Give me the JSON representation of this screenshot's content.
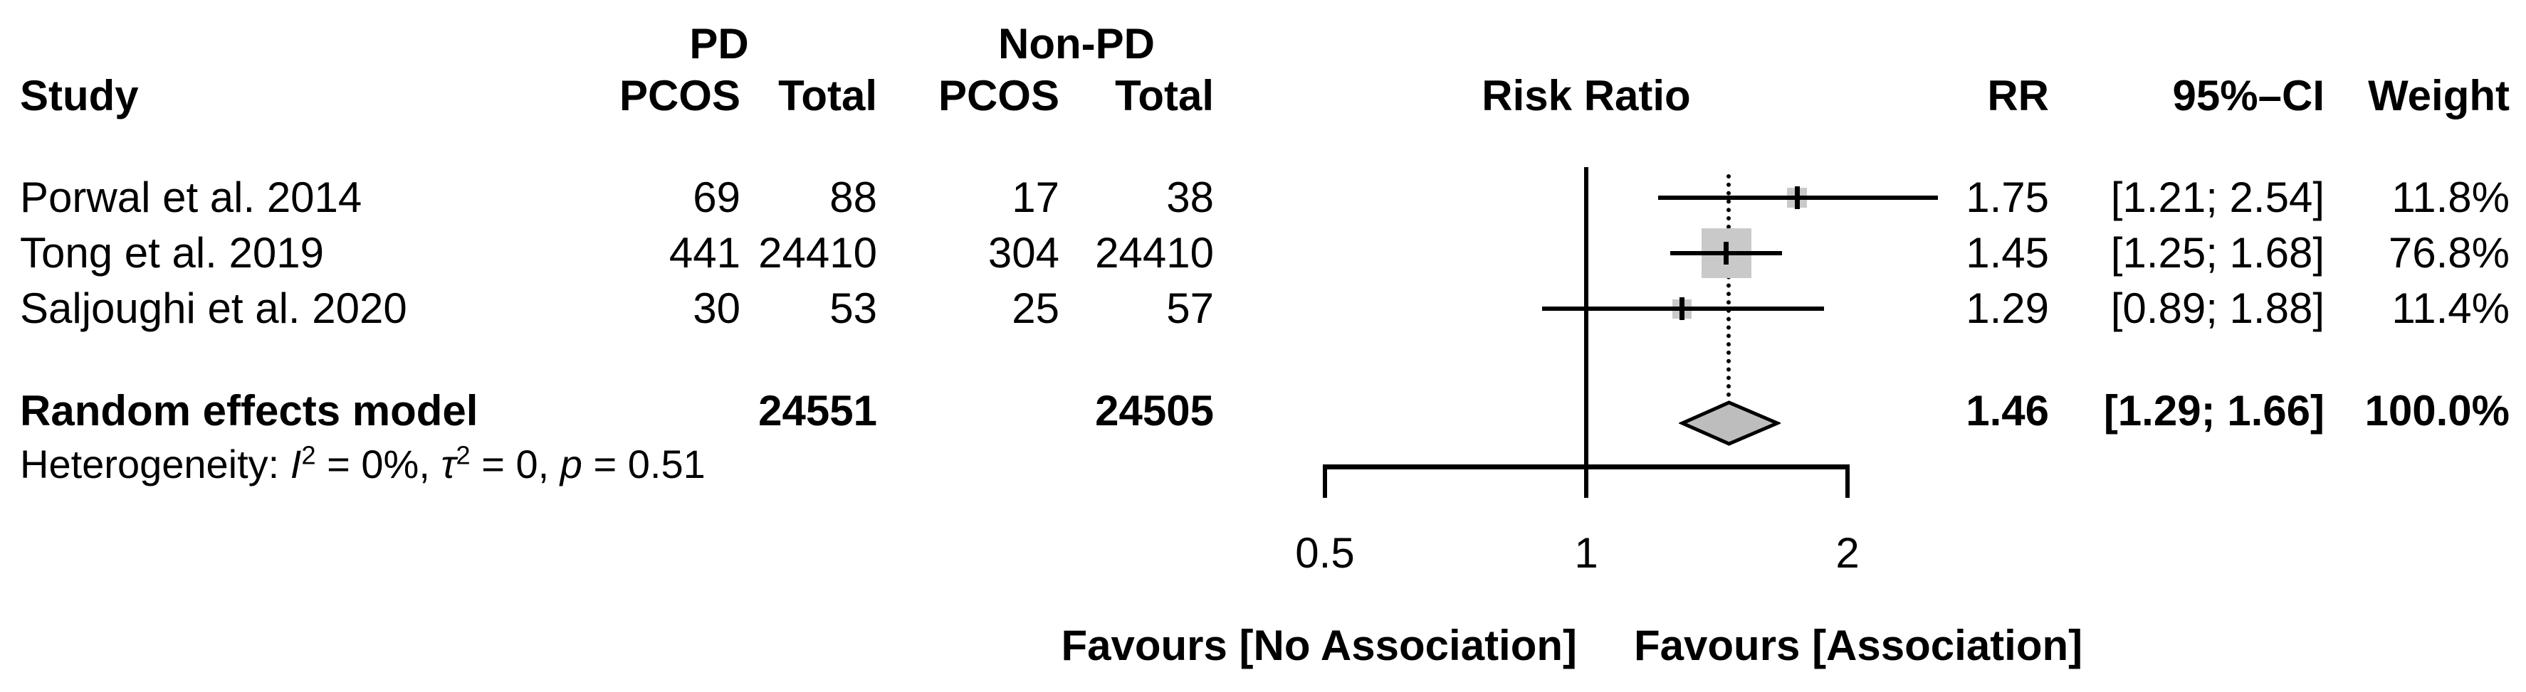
{
  "table": {
    "header": {
      "study": "Study",
      "group_pd": "PD",
      "group_nonpd": "Non-PD",
      "pcos": "PCOS",
      "total": "Total",
      "risk_ratio": "Risk Ratio",
      "rr": "RR",
      "ci": "95%–CI",
      "weight": "Weight"
    },
    "rows": [
      {
        "study": "Porwal et al. 2014",
        "pd_pcos": "69",
        "pd_total": "88",
        "nonpd_pcos": "17",
        "nonpd_total": "38",
        "rr": "1.75",
        "ci": "[1.21; 2.54]",
        "weight": "11.8%"
      },
      {
        "study": "Tong et al. 2019",
        "pd_pcos": "441",
        "pd_total": "24410",
        "nonpd_pcos": "304",
        "nonpd_total": "24410",
        "rr": "1.45",
        "ci": "[1.25; 1.68]",
        "weight": "76.8%"
      },
      {
        "study": "Saljoughi et al. 2020",
        "pd_pcos": "30",
        "pd_total": "53",
        "nonpd_pcos": "25",
        "nonpd_total": "57",
        "rr": "1.29",
        "ci": "[0.89; 1.88]",
        "weight": "11.4%"
      }
    ],
    "pooled": {
      "label": "Random effects model",
      "pd_total": "24551",
      "nonpd_total": "24505",
      "rr": "1.46",
      "ci": "[1.29; 1.66]",
      "weight": "100.0%"
    },
    "heterogeneity": {
      "prefix": "Heterogeneity: ",
      "i_sym": "I",
      "i_exp": "2",
      "i_val": " = 0%, ",
      "tau_sym": "τ",
      "tau_exp": "2",
      "tau_val": " = 0, ",
      "p_sym": "p",
      "p_val": " = 0.51"
    }
  },
  "axis": {
    "ticks": [
      "0.5",
      "1",
      "2"
    ]
  },
  "footer": {
    "left": "Favours [No Association]",
    "right": "Favours [Association]"
  },
  "colors": {
    "square_fill": "#c9c9c9",
    "diamond_fill": "#bdbdbd",
    "line": "#000000"
  },
  "chart_data": {
    "type": "forest",
    "scale": "log",
    "x_ticks": [
      0.5,
      1,
      2
    ],
    "xlim": [
      0.5,
      2
    ],
    "ref_line": 1,
    "studies": [
      {
        "name": "Porwal et al. 2014",
        "rr": 1.75,
        "ci_low": 1.21,
        "ci_high": 2.54,
        "weight_pct": 11.8,
        "pd_pcos": 69,
        "pd_total": 88,
        "nonpd_pcos": 17,
        "nonpd_total": 38
      },
      {
        "name": "Tong et al. 2019",
        "rr": 1.45,
        "ci_low": 1.25,
        "ci_high": 1.68,
        "weight_pct": 76.8,
        "pd_pcos": 441,
        "pd_total": 24410,
        "nonpd_pcos": 304,
        "nonpd_total": 24410
      },
      {
        "name": "Saljoughi et al. 2020",
        "rr": 1.29,
        "ci_low": 0.89,
        "ci_high": 1.88,
        "weight_pct": 11.4,
        "pd_pcos": 30,
        "pd_total": 53,
        "nonpd_pcos": 25,
        "nonpd_total": 57
      }
    ],
    "pooled": {
      "name": "Random effects model",
      "rr": 1.46,
      "ci_low": 1.29,
      "ci_high": 1.66,
      "weight_pct": 100.0,
      "pd_total": 24551,
      "nonpd_total": 24505
    },
    "heterogeneity": {
      "I2": "0%",
      "tau2": "0",
      "p": "0.51"
    },
    "effect_label": "Risk Ratio",
    "xlabel_left": "Favours [No Association]",
    "xlabel_right": "Favours [Association]"
  }
}
